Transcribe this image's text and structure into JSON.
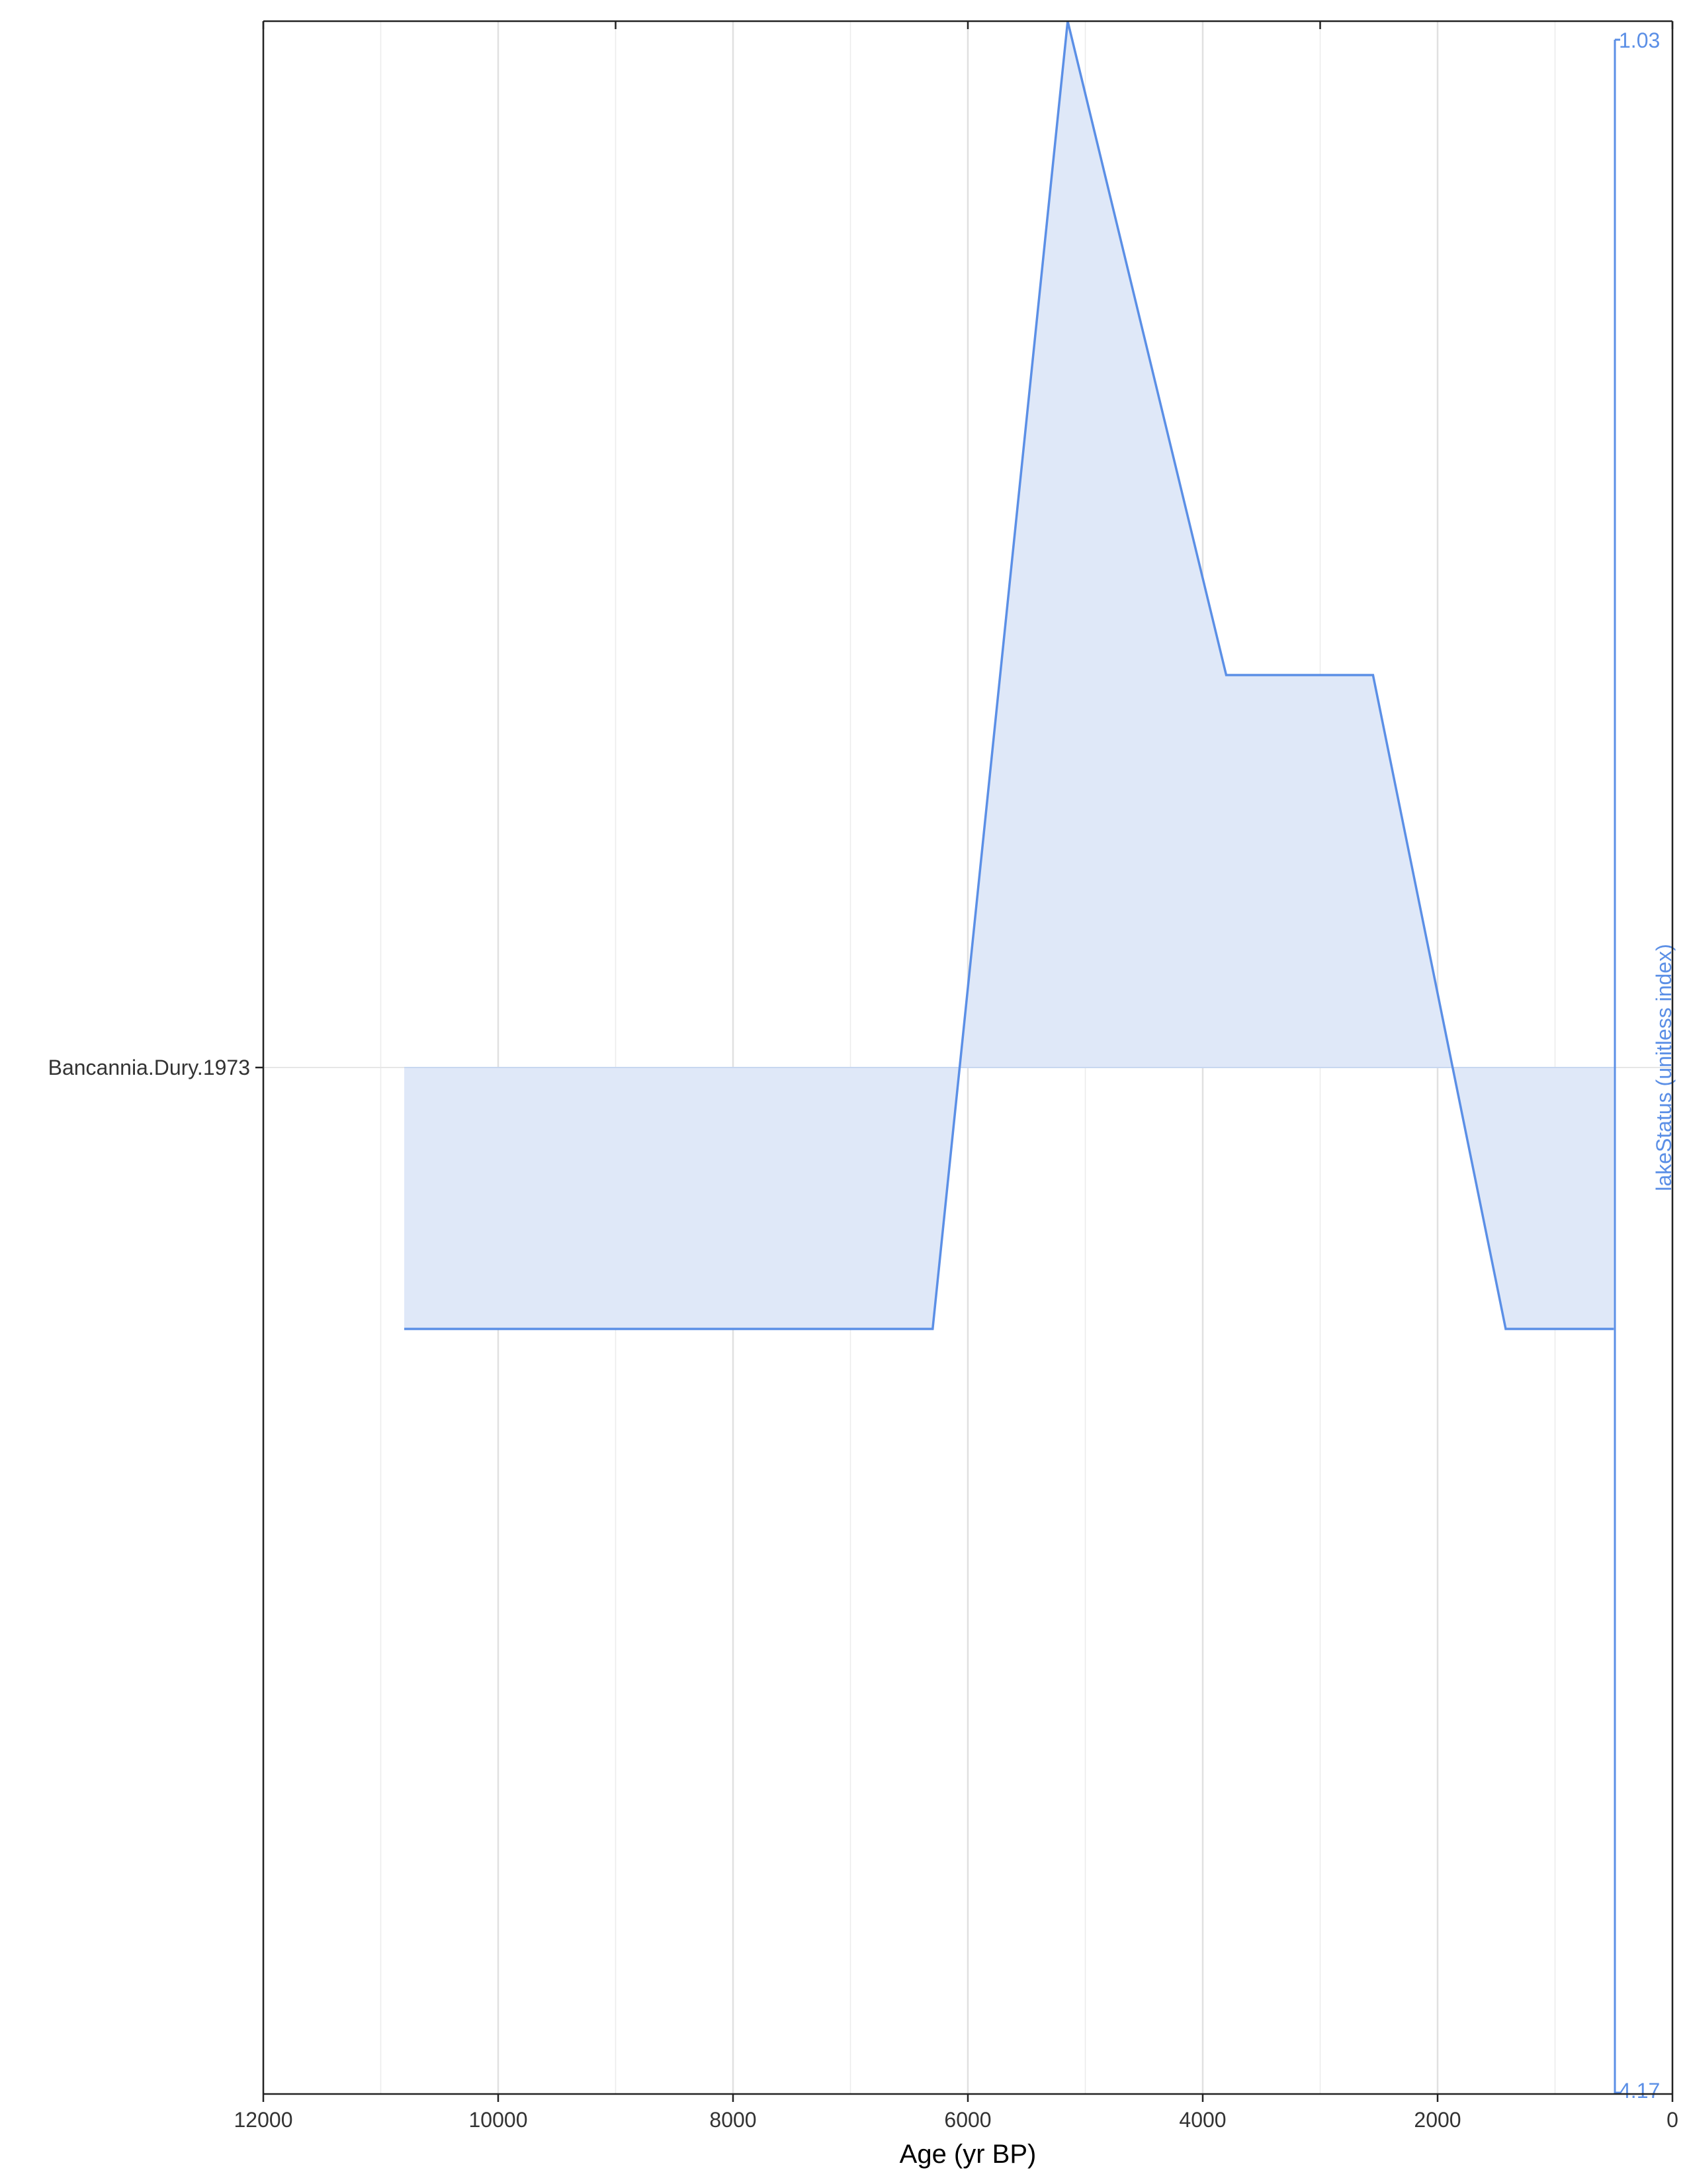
{
  "chart_data": {
    "type": "area",
    "xlabel": "Age (yr BP)",
    "x_reversed": true,
    "xlim": [
      12000,
      0
    ],
    "x_ticks": [
      12000,
      10000,
      8000,
      6000,
      4000,
      2000,
      0
    ],
    "x_tick_labels": [
      "12000",
      "10000",
      "8000",
      "6000",
      "4000",
      "2000",
      "0"
    ],
    "x_minor_gridlines": [
      11000,
      9000,
      7000,
      5000,
      3000,
      1000
    ],
    "top_axis_ticks": [
      12000,
      9000,
      6000,
      3000,
      0
    ],
    "y_category_label": "Bancannia.Dury.1973",
    "series": [
      {
        "label": "lakeStatus (unitless index)",
        "color": "#5b8fe6",
        "fill_color": "#dfe8f8",
        "max_label": "1.03",
        "min_label": "4.17",
        "baseline": 2.6,
        "ylim": [
          1.03,
          4.17
        ],
        "y_reversed": true,
        "points": [
          {
            "x": 10800,
            "y": 3.0
          },
          {
            "x": 6300,
            "y": 3.0
          },
          {
            "x": 5150,
            "y": 1.0
          },
          {
            "x": 3800,
            "y": 2.0
          },
          {
            "x": 2550,
            "y": 2.0
          },
          {
            "x": 1420,
            "y": 3.0
          },
          {
            "x": 500,
            "y": 3.0
          }
        ]
      }
    ],
    "grid": true
  }
}
